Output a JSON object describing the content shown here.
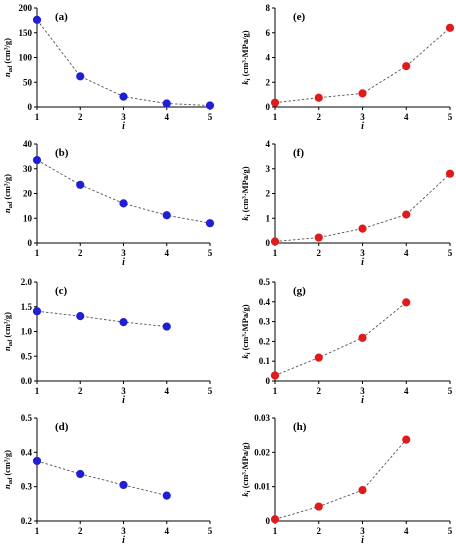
{
  "chart_data": [
    {
      "type": "scatter",
      "panel": "(a)",
      "ylabel_main": "n",
      "ylabel_sub": "ad",
      "ylabel_unit": " (cm³/g)",
      "xlabel": "i",
      "xlim": [
        1,
        5
      ],
      "ylim": [
        0,
        200
      ],
      "xticks": [
        "1",
        "2",
        "3",
        "4",
        "5"
      ],
      "yticks": [
        "0",
        "50",
        "100",
        "150",
        "200"
      ],
      "x": [
        1,
        2,
        3,
        4,
        5
      ],
      "y": [
        176,
        62,
        21,
        7,
        3
      ],
      "color": "#1f1fd6"
    },
    {
      "type": "scatter",
      "panel": "(b)",
      "ylabel_main": "n",
      "ylabel_sub": "ad",
      "ylabel_unit": " (cm³/g)",
      "xlabel": "i",
      "xlim": [
        1,
        5
      ],
      "ylim": [
        0,
        40
      ],
      "xticks": [
        "1",
        "2",
        "3",
        "4",
        "5"
      ],
      "yticks": [
        "0",
        "10",
        "20",
        "30",
        "40"
      ],
      "x": [
        1,
        2,
        3,
        4,
        5
      ],
      "y": [
        33.5,
        23.5,
        16,
        11.2,
        8
      ],
      "color": "#1f1fd6"
    },
    {
      "type": "scatter",
      "panel": "(c)",
      "ylabel_main": "n",
      "ylabel_sub": "ad",
      "ylabel_unit": " (cm³/g)",
      "xlabel": "i",
      "xlim": [
        1,
        5
      ],
      "ylim": [
        0,
        2
      ],
      "xticks": [
        "1",
        "2",
        "3",
        "4",
        "5"
      ],
      "yticks": [
        "0.0",
        "0.5",
        "1.0",
        "1.5",
        "2.0"
      ],
      "x": [
        1,
        2,
        3,
        4
      ],
      "y": [
        1.41,
        1.31,
        1.19,
        1.1
      ],
      "color": "#1f1fd6"
    },
    {
      "type": "scatter",
      "panel": "(d)",
      "ylabel_main": "n",
      "ylabel_sub": "ad",
      "ylabel_unit": " (cm³/g)",
      "xlabel": "i",
      "xlim": [
        1,
        5
      ],
      "ylim": [
        0.2,
        0.5
      ],
      "xticks": [
        "1",
        "2",
        "3",
        "4",
        "5"
      ],
      "yticks": [
        "0.2",
        "0.3",
        "0.4",
        "0.5"
      ],
      "x": [
        1,
        2,
        3,
        4
      ],
      "y": [
        0.375,
        0.337,
        0.305,
        0.274
      ],
      "color": "#1f1fd6"
    },
    {
      "type": "scatter",
      "panel": "(e)",
      "ylabel_main": "k",
      "ylabel_sub": "i",
      "ylabel_unit": " (cm³·MPa/g)",
      "xlabel": "i",
      "xlim": [
        1,
        5
      ],
      "ylim": [
        0,
        8
      ],
      "xticks": [
        "1",
        "2",
        "3",
        "4",
        "5"
      ],
      "yticks": [
        "0",
        "2",
        "4",
        "6",
        "8"
      ],
      "x": [
        1,
        2,
        3,
        4,
        5
      ],
      "y": [
        0.35,
        0.75,
        1.1,
        3.3,
        6.4
      ],
      "color": "#e01b1b"
    },
    {
      "type": "scatter",
      "panel": "(f)",
      "ylabel_main": "k",
      "ylabel_sub": "i",
      "ylabel_unit": " (cm³·MPa/g)",
      "xlabel": "i",
      "xlim": [
        1,
        5
      ],
      "ylim": [
        0,
        4
      ],
      "xticks": [
        "1",
        "2",
        "3",
        "4",
        "5"
      ],
      "yticks": [
        "0",
        "1",
        "2",
        "3",
        "4"
      ],
      "x": [
        1,
        2,
        3,
        4,
        5
      ],
      "y": [
        0.06,
        0.22,
        0.58,
        1.15,
        2.8
      ],
      "color": "#e01b1b"
    },
    {
      "type": "scatter",
      "panel": "(g)",
      "ylabel_main": "k",
      "ylabel_sub": "i",
      "ylabel_unit": " (cm³·MPa/g)",
      "xlabel": "i",
      "xlim": [
        1,
        5
      ],
      "ylim": [
        0,
        0.5
      ],
      "xticks": [
        "1",
        "2",
        "3",
        "4",
        "5"
      ],
      "yticks": [
        "0",
        "0.1",
        "0.2",
        "0.3",
        "0.4",
        "0.5"
      ],
      "x": [
        1,
        2,
        3,
        4
      ],
      "y": [
        0.028,
        0.118,
        0.218,
        0.397
      ],
      "color": "#e01b1b"
    },
    {
      "type": "scatter",
      "panel": "(h)",
      "ylabel_main": "k",
      "ylabel_sub": "i",
      "ylabel_unit": " (cm³·MPa/g)",
      "xlabel": "i",
      "xlim": [
        1,
        5
      ],
      "ylim": [
        0,
        0.03
      ],
      "xticks": [
        "1",
        "2",
        "3",
        "4",
        "5"
      ],
      "yticks": [
        "0",
        "0.01",
        "0.02",
        "0.03"
      ],
      "x": [
        1,
        2,
        3,
        4
      ],
      "y": [
        0.0005,
        0.0042,
        0.009,
        0.0237
      ],
      "color": "#e01b1b"
    }
  ]
}
